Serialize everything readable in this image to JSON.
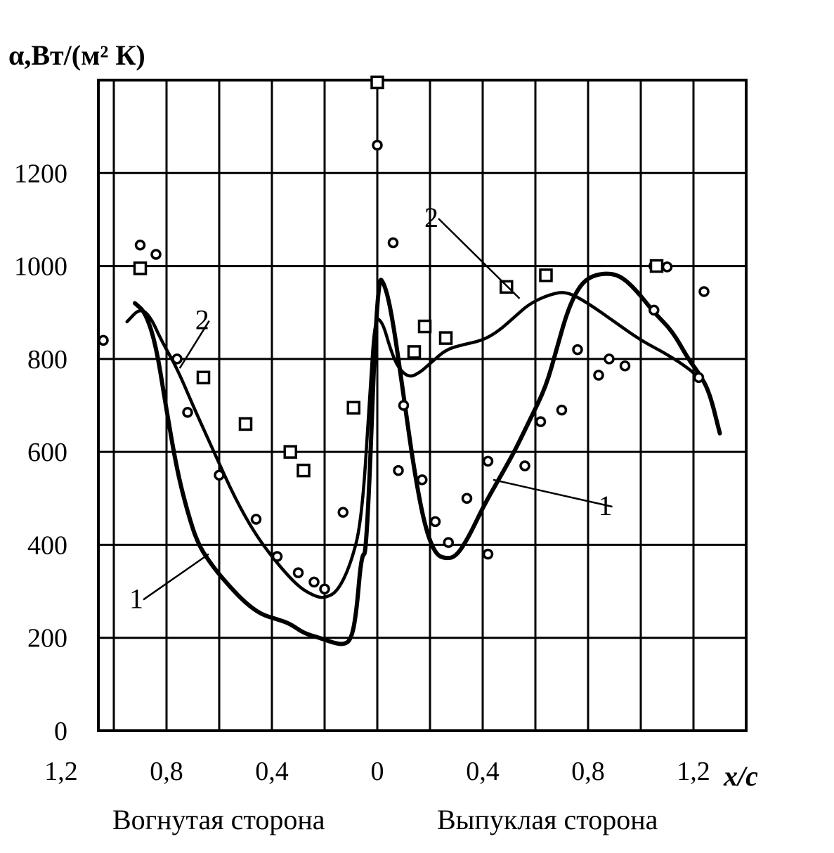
{
  "chart_data": {
    "type": "scatter",
    "ylabel": "α,Вт/(м² К)",
    "xlabel": "x/c",
    "ylim": [
      0,
      1400
    ],
    "yticks": [
      0,
      200,
      400,
      600,
      800,
      1000,
      1200
    ],
    "ytick_labels": [
      "0",
      "200",
      "400",
      "600",
      "800",
      "1000",
      "1200"
    ],
    "xticks_concave": [
      1.2,
      0.8,
      0.4,
      0
    ],
    "xticks_convex": [
      0,
      0.4,
      0.8,
      1.2
    ],
    "xtick_labels_concave": [
      "1,2",
      "0,8",
      "0,4",
      "0"
    ],
    "xtick_labels_convex": [
      "0",
      "0,4",
      "0,8",
      "1,2"
    ],
    "side_labels": {
      "concave": "Вогнутая сторона",
      "convex": "Выпуклая сторона"
    },
    "grid": true,
    "note": "Horizontal axis is two-sided: concave side increases to the left of 0, convex side increases to the right of 0; negative s = concave side",
    "series": [
      {
        "name": "1",
        "kind": "line",
        "points": [
          [
            -0.92,
            920
          ],
          [
            -0.88,
            900
          ],
          [
            -0.84,
            830
          ],
          [
            -0.8,
            690
          ],
          [
            -0.76,
            560
          ],
          [
            -0.72,
            470
          ],
          [
            -0.68,
            400
          ],
          [
            -0.62,
            350
          ],
          [
            -0.56,
            310
          ],
          [
            -0.5,
            275
          ],
          [
            -0.44,
            250
          ],
          [
            -0.38,
            240
          ],
          [
            -0.33,
            230
          ],
          [
            -0.28,
            210
          ],
          [
            -0.22,
            200
          ],
          [
            -0.17,
            190
          ],
          [
            -0.13,
            185
          ],
          [
            -0.1,
            195
          ],
          [
            -0.08,
            250
          ],
          [
            -0.06,
            380
          ],
          [
            -0.04,
            380
          ],
          [
            0,
            980
          ],
          [
            0.03,
            960
          ],
          [
            0.06,
            880
          ],
          [
            0.1,
            720
          ],
          [
            0.14,
            560
          ],
          [
            0.18,
            440
          ],
          [
            0.22,
            380
          ],
          [
            0.26,
            370
          ],
          [
            0.3,
            375
          ],
          [
            0.35,
            420
          ],
          [
            0.4,
            480
          ],
          [
            0.46,
            540
          ],
          [
            0.52,
            600
          ],
          [
            0.58,
            670
          ],
          [
            0.64,
            740
          ],
          [
            0.68,
            820
          ],
          [
            0.72,
            900
          ],
          [
            0.76,
            950
          ],
          [
            0.8,
            975
          ],
          [
            0.86,
            985
          ],
          [
            0.92,
            980
          ],
          [
            0.98,
            950
          ],
          [
            1.05,
            900
          ],
          [
            1.12,
            860
          ],
          [
            1.18,
            800
          ],
          [
            1.22,
            770
          ],
          [
            1.26,
            730
          ],
          [
            1.3,
            640
          ]
        ]
      },
      {
        "name": "2",
        "kind": "line",
        "points": [
          [
            -0.95,
            880
          ],
          [
            -0.9,
            910
          ],
          [
            -0.86,
            890
          ],
          [
            -0.82,
            840
          ],
          [
            -0.76,
            780
          ],
          [
            -0.7,
            700
          ],
          [
            -0.62,
            600
          ],
          [
            -0.54,
            500
          ],
          [
            -0.46,
            420
          ],
          [
            -0.38,
            360
          ],
          [
            -0.3,
            310
          ],
          [
            -0.24,
            290
          ],
          [
            -0.2,
            285
          ],
          [
            -0.15,
            300
          ],
          [
            -0.1,
            360
          ],
          [
            -0.06,
            450
          ],
          [
            -0.03,
            700
          ],
          [
            -0.01,
            890
          ],
          [
            0.02,
            880
          ],
          [
            0.05,
            820
          ],
          [
            0.08,
            780
          ],
          [
            0.12,
            760
          ],
          [
            0.16,
            770
          ],
          [
            0.2,
            790
          ],
          [
            0.26,
            820
          ],
          [
            0.32,
            830
          ],
          [
            0.4,
            840
          ],
          [
            0.46,
            860
          ],
          [
            0.52,
            890
          ],
          [
            0.58,
            920
          ],
          [
            0.66,
            940
          ],
          [
            0.72,
            945
          ],
          [
            0.8,
            920
          ],
          [
            0.9,
            880
          ],
          [
            1.0,
            840
          ],
          [
            1.1,
            810
          ],
          [
            1.18,
            780
          ],
          [
            1.22,
            760
          ]
        ]
      },
      {
        "name": "circles",
        "kind": "scatter",
        "marker": "circle",
        "points": [
          [
            -1.04,
            840
          ],
          [
            -0.9,
            1045
          ],
          [
            -0.84,
            1025
          ],
          [
            -0.76,
            800
          ],
          [
            -0.72,
            685
          ],
          [
            -0.6,
            550
          ],
          [
            -0.46,
            455
          ],
          [
            -0.38,
            375
          ],
          [
            -0.3,
            340
          ],
          [
            -0.24,
            320
          ],
          [
            -0.2,
            305
          ],
          [
            -0.13,
            470
          ],
          [
            0,
            1260
          ],
          [
            0.06,
            1050
          ],
          [
            0.1,
            700
          ],
          [
            0.08,
            560
          ],
          [
            0.17,
            540
          ],
          [
            0.22,
            450
          ],
          [
            0.27,
            405
          ],
          [
            0.34,
            500
          ],
          [
            0.42,
            580
          ],
          [
            0.42,
            380
          ],
          [
            0.56,
            570
          ],
          [
            0.62,
            665
          ],
          [
            0.7,
            690
          ],
          [
            0.76,
            820
          ],
          [
            0.84,
            765
          ],
          [
            0.88,
            800
          ],
          [
            0.94,
            785
          ],
          [
            1.05,
            1000
          ],
          [
            1.1,
            998
          ],
          [
            1.05,
            905
          ],
          [
            1.22,
            760
          ],
          [
            1.24,
            945
          ]
        ]
      },
      {
        "name": "squares",
        "kind": "scatter",
        "marker": "square",
        "points": [
          [
            -0.9,
            995
          ],
          [
            -0.66,
            760
          ],
          [
            -0.5,
            660
          ],
          [
            -0.33,
            600
          ],
          [
            -0.28,
            560
          ],
          [
            -0.09,
            695
          ],
          [
            0.0,
            1395
          ],
          [
            0.14,
            815
          ],
          [
            0.18,
            870
          ],
          [
            0.26,
            845
          ],
          [
            0.49,
            955
          ],
          [
            0.64,
            980
          ],
          [
            1.06,
            1000
          ]
        ]
      }
    ],
    "annotations": [
      {
        "label": "2",
        "target_series": "2",
        "at": [
          -0.67,
          870
        ],
        "leader_to": [
          -0.75,
          780
        ]
      },
      {
        "label": "1",
        "target_series": "1",
        "at": [
          -0.92,
          270
        ],
        "leader_to": [
          -0.64,
          380
        ]
      },
      {
        "label": "2",
        "target_series": "2",
        "at": [
          0.2,
          1090
        ],
        "leader_to": [
          0.54,
          930
        ]
      },
      {
        "label": "1",
        "target_series": "1",
        "at": [
          0.86,
          470
        ],
        "leader_to": [
          0.44,
          540
        ]
      }
    ]
  }
}
